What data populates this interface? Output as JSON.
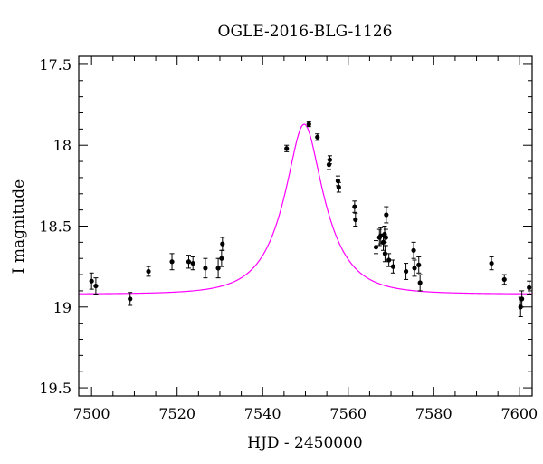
{
  "chart_data": {
    "type": "scatter",
    "title": "OGLE-2016-BLG-1126",
    "xlabel": "HJD - 2450000",
    "ylabel": "I magnitude",
    "xlim": [
      7497,
      7603
    ],
    "ylim": [
      19.55,
      17.45
    ],
    "y_inverted": true,
    "x_ticks": [
      7500,
      7520,
      7540,
      7560,
      7580,
      7600
    ],
    "x_tick_labels": [
      "7500",
      "7520",
      "7540",
      "7560",
      "7580",
      "7600"
    ],
    "y_ticks": [
      17.5,
      18,
      18.5,
      19,
      19.5
    ],
    "y_tick_labels": [
      "17.5",
      "18",
      "18.5",
      "19",
      "19.5"
    ],
    "grid": false,
    "legend": "none",
    "series": [
      {
        "kind": "points_with_errorbars",
        "color": "#000000",
        "points": [
          {
            "x": 7500.0,
            "y": 18.84,
            "err": 0.05
          },
          {
            "x": 7501.0,
            "y": 18.87,
            "err": 0.05
          },
          {
            "x": 7509.0,
            "y": 18.95,
            "err": 0.04
          },
          {
            "x": 7513.3,
            "y": 18.78,
            "err": 0.03
          },
          {
            "x": 7518.8,
            "y": 18.72,
            "err": 0.05
          },
          {
            "x": 7522.7,
            "y": 18.72,
            "err": 0.04
          },
          {
            "x": 7523.7,
            "y": 18.73,
            "err": 0.04
          },
          {
            "x": 7526.6,
            "y": 18.76,
            "err": 0.06
          },
          {
            "x": 7529.6,
            "y": 18.76,
            "err": 0.06
          },
          {
            "x": 7530.4,
            "y": 18.7,
            "err": 0.05
          },
          {
            "x": 7530.6,
            "y": 18.61,
            "err": 0.04
          },
          {
            "x": 7545.6,
            "y": 18.02,
            "err": 0.02
          },
          {
            "x": 7550.8,
            "y": 17.87,
            "err": 0.015
          },
          {
            "x": 7552.8,
            "y": 17.95,
            "err": 0.02
          },
          {
            "x": 7555.5,
            "y": 18.12,
            "err": 0.03
          },
          {
            "x": 7555.7,
            "y": 18.09,
            "err": 0.025
          },
          {
            "x": 7557.6,
            "y": 18.22,
            "err": 0.03
          },
          {
            "x": 7557.8,
            "y": 18.26,
            "err": 0.03
          },
          {
            "x": 7561.5,
            "y": 18.38,
            "err": 0.035
          },
          {
            "x": 7561.7,
            "y": 18.46,
            "err": 0.04
          },
          {
            "x": 7566.5,
            "y": 18.63,
            "err": 0.04
          },
          {
            "x": 7567.3,
            "y": 18.57,
            "err": 0.05
          },
          {
            "x": 7567.6,
            "y": 18.56,
            "err": 0.05
          },
          {
            "x": 7568.2,
            "y": 18.6,
            "err": 0.05
          },
          {
            "x": 7568.5,
            "y": 18.55,
            "err": 0.05
          },
          {
            "x": 7568.8,
            "y": 18.57,
            "err": 0.05
          },
          {
            "x": 7568.6,
            "y": 18.67,
            "err": 0.05
          },
          {
            "x": 7568.9,
            "y": 18.43,
            "err": 0.05
          },
          {
            "x": 7569.5,
            "y": 18.71,
            "err": 0.04
          },
          {
            "x": 7570.5,
            "y": 18.75,
            "err": 0.04
          },
          {
            "x": 7573.5,
            "y": 18.78,
            "err": 0.05
          },
          {
            "x": 7575.3,
            "y": 18.65,
            "err": 0.05
          },
          {
            "x": 7575.5,
            "y": 18.76,
            "err": 0.05
          },
          {
            "x": 7576.5,
            "y": 18.74,
            "err": 0.05
          },
          {
            "x": 7576.8,
            "y": 18.85,
            "err": 0.05
          },
          {
            "x": 7593.5,
            "y": 18.73,
            "err": 0.04
          },
          {
            "x": 7596.5,
            "y": 18.83,
            "err": 0.03
          },
          {
            "x": 7600.3,
            "y": 19.0,
            "err": 0.06
          },
          {
            "x": 7600.6,
            "y": 18.95,
            "err": 0.05
          },
          {
            "x": 7602.3,
            "y": 18.88,
            "err": 0.04
          }
        ]
      },
      {
        "kind": "model_curve",
        "color": "#ff00ff",
        "t0": 7549.7,
        "tE": 9.2,
        "u0": 0.38,
        "baseline_mag": 18.92,
        "peak_mag": 17.87
      }
    ]
  }
}
